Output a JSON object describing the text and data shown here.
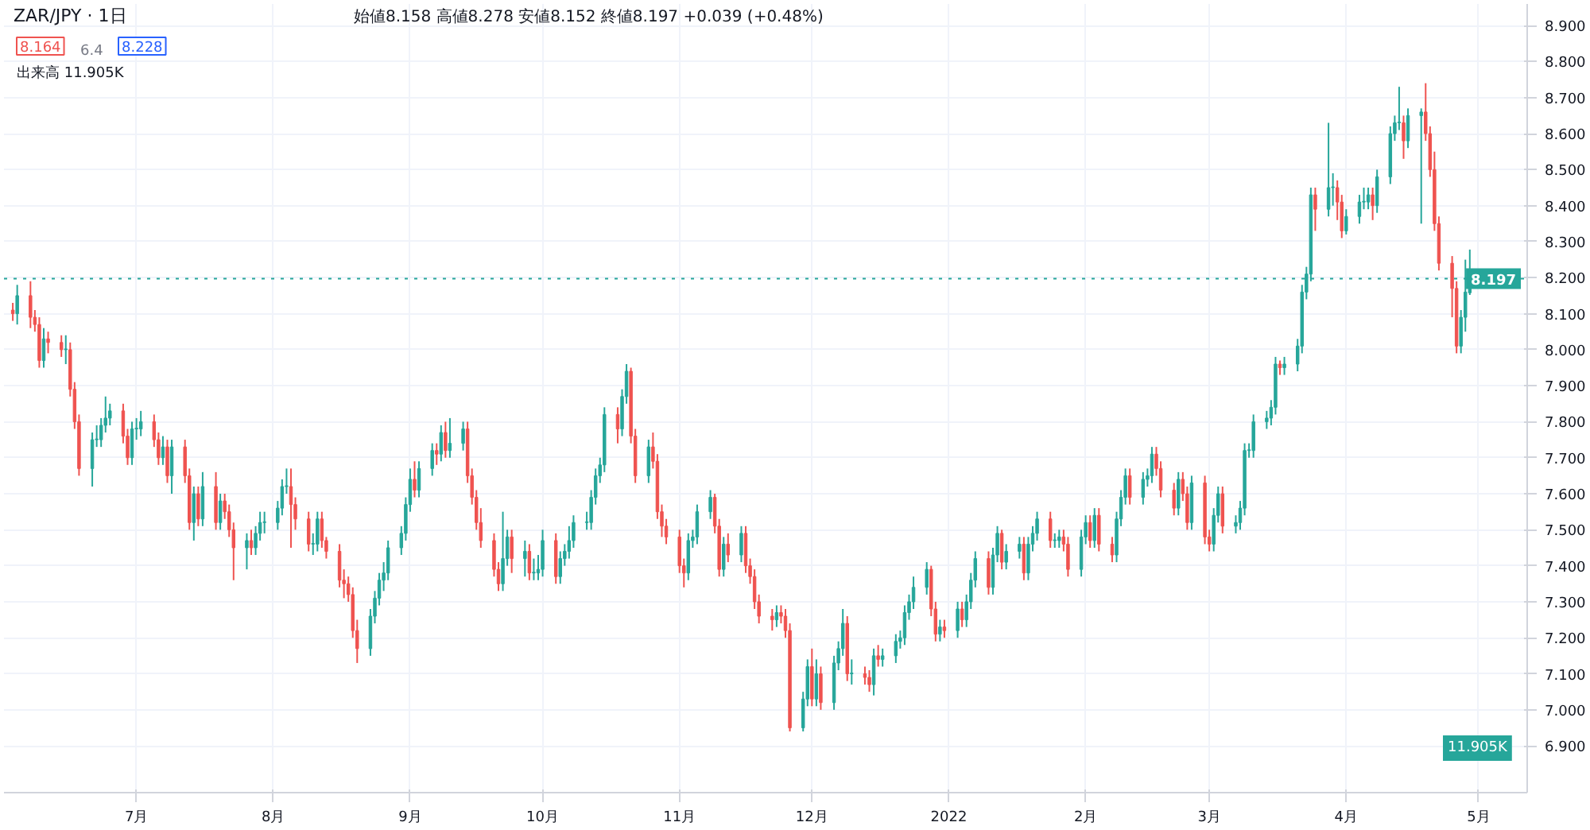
{
  "chart_data": {
    "type": "candlestick",
    "title": "ZAR/JPY · 1日",
    "subtitle": "始値8.158 高値8.278 安値8.152 終値8.197 +0.039 (+0.48%)",
    "annotations": [
      "8.164",
      "6.4",
      "8.228",
      "出来高 11.905K",
      "11.905K"
    ],
    "x": [
      "2021-06-03",
      "2021-06-04",
      "2021-06-07",
      "2021-06-08",
      "2021-06-09",
      "2021-06-10",
      "2021-06-11",
      "2021-06-14",
      "2021-06-15",
      "2021-06-16",
      "2021-06-17",
      "2021-06-18",
      "2021-06-21",
      "2021-06-22",
      "2021-06-23",
      "2021-06-24",
      "2021-06-25",
      "2021-06-28",
      "2021-06-29",
      "2021-06-30",
      "2021-07-01",
      "2021-07-02",
      "2021-07-05",
      "2021-07-06",
      "2021-07-07",
      "2021-07-08",
      "2021-07-09",
      "2021-07-12",
      "2021-07-13",
      "2021-07-14",
      "2021-07-15",
      "2021-07-16",
      "2021-07-19",
      "2021-07-20",
      "2021-07-21",
      "2021-07-22",
      "2021-07-23",
      "2021-07-26",
      "2021-07-27",
      "2021-07-28",
      "2021-07-29",
      "2021-07-30",
      "2021-08-02",
      "2021-08-03",
      "2021-08-04",
      "2021-08-05",
      "2021-08-06",
      "2021-08-09",
      "2021-08-10",
      "2021-08-11",
      "2021-08-12",
      "2021-08-13",
      "2021-08-16",
      "2021-08-17",
      "2021-08-18",
      "2021-08-19",
      "2021-08-20",
      "2021-08-23",
      "2021-08-24",
      "2021-08-25",
      "2021-08-26",
      "2021-08-27",
      "2021-08-30",
      "2021-08-31",
      "2021-09-01",
      "2021-09-02",
      "2021-09-03",
      "2021-09-06",
      "2021-09-07",
      "2021-09-08",
      "2021-09-09",
      "2021-09-10",
      "2021-09-13",
      "2021-09-14",
      "2021-09-15",
      "2021-09-16",
      "2021-09-17",
      "2021-09-20",
      "2021-09-21",
      "2021-09-22",
      "2021-09-23",
      "2021-09-24",
      "2021-09-27",
      "2021-09-28",
      "2021-09-29",
      "2021-09-30",
      "2021-10-01",
      "2021-10-04",
      "2021-10-05",
      "2021-10-06",
      "2021-10-07",
      "2021-10-08",
      "2021-10-11",
      "2021-10-12",
      "2021-10-13",
      "2021-10-14",
      "2021-10-15",
      "2021-10-18",
      "2021-10-19",
      "2021-10-20",
      "2021-10-21",
      "2021-10-22",
      "2021-10-25",
      "2021-10-26",
      "2021-10-27",
      "2021-10-28",
      "2021-10-29",
      "2021-11-01",
      "2021-11-02",
      "2021-11-03",
      "2021-11-04",
      "2021-11-05",
      "2021-11-08",
      "2021-11-09",
      "2021-11-10",
      "2021-11-11",
      "2021-11-12",
      "2021-11-15",
      "2021-11-16",
      "2021-11-17",
      "2021-11-18",
      "2021-11-19",
      "2021-11-22",
      "2021-11-23",
      "2021-11-24",
      "2021-11-25",
      "2021-11-26",
      "2021-11-29",
      "2021-11-30",
      "2021-12-01",
      "2021-12-02",
      "2021-12-03",
      "2021-12-06",
      "2021-12-07",
      "2021-12-08",
      "2021-12-09",
      "2021-12-10",
      "2021-12-13",
      "2021-12-14",
      "2021-12-15",
      "2021-12-16",
      "2021-12-17",
      "2021-12-20",
      "2021-12-21",
      "2021-12-22",
      "2021-12-23",
      "2021-12-24",
      "2021-12-27",
      "2021-12-28",
      "2021-12-29",
      "2021-12-30",
      "2021-12-31",
      "2022-01-03",
      "2022-01-04",
      "2022-01-05",
      "2022-01-06",
      "2022-01-07",
      "2022-01-10",
      "2022-01-11",
      "2022-01-12",
      "2022-01-13",
      "2022-01-14",
      "2022-01-17",
      "2022-01-18",
      "2022-01-19",
      "2022-01-20",
      "2022-01-21",
      "2022-01-24",
      "2022-01-25",
      "2022-01-26",
      "2022-01-27",
      "2022-01-28",
      "2022-01-31",
      "2022-02-01",
      "2022-02-02",
      "2022-02-03",
      "2022-02-04",
      "2022-02-07",
      "2022-02-08",
      "2022-02-09",
      "2022-02-10",
      "2022-02-11",
      "2022-02-14",
      "2022-02-15",
      "2022-02-16",
      "2022-02-17",
      "2022-02-18",
      "2022-02-21",
      "2022-02-22",
      "2022-02-23",
      "2022-02-24",
      "2022-02-25",
      "2022-02-28",
      "2022-03-01",
      "2022-03-02",
      "2022-03-03",
      "2022-03-04",
      "2022-03-07",
      "2022-03-08",
      "2022-03-09",
      "2022-03-10",
      "2022-03-11",
      "2022-03-14",
      "2022-03-15",
      "2022-03-16",
      "2022-03-17",
      "2022-03-18",
      "2022-03-21",
      "2022-03-22",
      "2022-03-23",
      "2022-03-24",
      "2022-03-25",
      "2022-03-28",
      "2022-03-29",
      "2022-03-30",
      "2022-03-31",
      "2022-04-01",
      "2022-04-04",
      "2022-04-05",
      "2022-04-06",
      "2022-04-07",
      "2022-04-08",
      "2022-04-11",
      "2022-04-12",
      "2022-04-13",
      "2022-04-14",
      "2022-04-15",
      "2022-04-18",
      "2022-04-19",
      "2022-04-20",
      "2022-04-21",
      "2022-04-22",
      "2022-04-25",
      "2022-04-26",
      "2022-04-27",
      "2022-04-28",
      "2022-04-29"
    ],
    "ohlc": [
      [
        8.11,
        8.13,
        8.08,
        8.1
      ],
      [
        8.1,
        8.18,
        8.07,
        8.15
      ],
      [
        8.15,
        8.19,
        8.06,
        8.09
      ],
      [
        8.09,
        8.11,
        8.05,
        8.07
      ],
      [
        8.07,
        8.09,
        7.95,
        7.97
      ],
      [
        7.97,
        8.06,
        7.95,
        8.03
      ],
      [
        8.03,
        8.05,
        7.99,
        8.02
      ],
      [
        8.02,
        8.04,
        7.98,
        8.0
      ],
      [
        8.0,
        8.04,
        7.96,
        8.0
      ],
      [
        8.0,
        8.02,
        7.87,
        7.89
      ],
      [
        7.89,
        7.91,
        7.78,
        7.8
      ],
      [
        7.8,
        7.82,
        7.65,
        7.67
      ],
      [
        7.67,
        7.77,
        7.62,
        7.75
      ],
      [
        7.75,
        7.79,
        7.73,
        7.75
      ],
      [
        7.75,
        7.81,
        7.73,
        7.79
      ],
      [
        7.79,
        7.87,
        7.77,
        7.81
      ],
      [
        7.81,
        7.85,
        7.79,
        7.83
      ],
      [
        7.83,
        7.85,
        7.74,
        7.76
      ],
      [
        7.76,
        7.78,
        7.68,
        7.7
      ],
      [
        7.7,
        7.8,
        7.68,
        7.78
      ],
      [
        7.78,
        7.81,
        7.75,
        7.78
      ],
      [
        7.78,
        7.83,
        7.76,
        7.8
      ],
      [
        7.8,
        7.82,
        7.73,
        7.75
      ],
      [
        7.75,
        7.77,
        7.68,
        7.7
      ],
      [
        7.7,
        7.76,
        7.68,
        7.73
      ],
      [
        7.73,
        7.75,
        7.63,
        7.65
      ],
      [
        7.65,
        7.75,
        7.6,
        7.73
      ],
      [
        7.73,
        7.75,
        7.63,
        7.65
      ],
      [
        7.65,
        7.67,
        7.5,
        7.52
      ],
      [
        7.52,
        7.62,
        7.47,
        7.6
      ],
      [
        7.6,
        7.62,
        7.51,
        7.53
      ],
      [
        7.53,
        7.66,
        7.51,
        7.62
      ],
      [
        7.62,
        7.66,
        7.5,
        7.52
      ],
      [
        7.52,
        7.6,
        7.5,
        7.58
      ],
      [
        7.58,
        7.6,
        7.53,
        7.55
      ],
      [
        7.55,
        7.57,
        7.48,
        7.5
      ],
      [
        7.5,
        7.52,
        7.36,
        7.45
      ],
      [
        7.45,
        7.49,
        7.39,
        7.47
      ],
      [
        7.47,
        7.5,
        7.43,
        7.45
      ],
      [
        7.45,
        7.51,
        7.43,
        7.49
      ],
      [
        7.49,
        7.55,
        7.47,
        7.52
      ],
      [
        7.52,
        7.55,
        7.49,
        7.52
      ],
      [
        7.52,
        7.58,
        7.5,
        7.56
      ],
      [
        7.56,
        7.64,
        7.54,
        7.62
      ],
      [
        7.62,
        7.67,
        7.6,
        7.62
      ],
      [
        7.62,
        7.67,
        7.45,
        7.57
      ],
      [
        7.57,
        7.59,
        7.5,
        7.53
      ],
      [
        7.53,
        7.55,
        7.44,
        7.46
      ],
      [
        7.46,
        7.49,
        7.43,
        7.46
      ],
      [
        7.46,
        7.55,
        7.44,
        7.53
      ],
      [
        7.53,
        7.55,
        7.45,
        7.47
      ],
      [
        7.47,
        7.48,
        7.42,
        7.44
      ],
      [
        7.44,
        7.46,
        7.34,
        7.36
      ],
      [
        7.36,
        7.39,
        7.31,
        7.35
      ],
      [
        7.35,
        7.37,
        7.3,
        7.32
      ],
      [
        7.32,
        7.34,
        7.2,
        7.22
      ],
      [
        7.22,
        7.25,
        7.13,
        7.17
      ],
      [
        7.17,
        7.28,
        7.15,
        7.26
      ],
      [
        7.26,
        7.33,
        7.24,
        7.31
      ],
      [
        7.31,
        7.38,
        7.29,
        7.36
      ],
      [
        7.36,
        7.41,
        7.33,
        7.38
      ],
      [
        7.38,
        7.47,
        7.36,
        7.45
      ],
      [
        7.45,
        7.51,
        7.43,
        7.49
      ],
      [
        7.49,
        7.59,
        7.47,
        7.57
      ],
      [
        7.57,
        7.67,
        7.55,
        7.64
      ],
      [
        7.64,
        7.69,
        7.59,
        7.61
      ],
      [
        7.61,
        7.69,
        7.59,
        7.67
      ],
      [
        7.67,
        7.74,
        7.65,
        7.72
      ],
      [
        7.72,
        7.74,
        7.68,
        7.71
      ],
      [
        7.71,
        7.79,
        7.69,
        7.77
      ],
      [
        7.77,
        7.8,
        7.7,
        7.72
      ],
      [
        7.72,
        7.81,
        7.7,
        7.74
      ],
      [
        7.74,
        7.8,
        7.72,
        7.78
      ],
      [
        7.78,
        7.8,
        7.63,
        7.65
      ],
      [
        7.65,
        7.67,
        7.57,
        7.59
      ],
      [
        7.59,
        7.61,
        7.5,
        7.52
      ],
      [
        7.52,
        7.56,
        7.45,
        7.47
      ],
      [
        7.47,
        7.49,
        7.37,
        7.39
      ],
      [
        7.39,
        7.41,
        7.33,
        7.35
      ],
      [
        7.35,
        7.55,
        7.33,
        7.42
      ],
      [
        7.42,
        7.5,
        7.4,
        7.48
      ],
      [
        7.48,
        7.5,
        7.38,
        7.42
      ],
      [
        7.42,
        7.47,
        7.37,
        7.44
      ],
      [
        7.44,
        7.46,
        7.36,
        7.38
      ],
      [
        7.38,
        7.42,
        7.36,
        7.38
      ],
      [
        7.38,
        7.43,
        7.36,
        7.39
      ],
      [
        7.39,
        7.5,
        7.37,
        7.47
      ],
      [
        7.47,
        7.49,
        7.35,
        7.37
      ],
      [
        7.37,
        7.44,
        7.35,
        7.42
      ],
      [
        7.42,
        7.46,
        7.4,
        7.44
      ],
      [
        7.44,
        7.51,
        7.42,
        7.47
      ],
      [
        7.47,
        7.54,
        7.45,
        7.52
      ],
      [
        7.52,
        7.55,
        7.5,
        7.52
      ],
      [
        7.52,
        7.61,
        7.5,
        7.59
      ],
      [
        7.59,
        7.67,
        7.57,
        7.65
      ],
      [
        7.65,
        7.7,
        7.63,
        7.68
      ],
      [
        7.68,
        7.84,
        7.66,
        7.82
      ],
      [
        7.82,
        7.84,
        7.74,
        7.78
      ],
      [
        7.78,
        7.89,
        7.76,
        7.87
      ],
      [
        7.87,
        7.96,
        7.85,
        7.94
      ],
      [
        7.94,
        7.95,
        7.74,
        7.76
      ],
      [
        7.76,
        7.78,
        7.63,
        7.65
      ],
      [
        7.65,
        7.75,
        7.63,
        7.73
      ],
      [
        7.73,
        7.77,
        7.67,
        7.69
      ],
      [
        7.69,
        7.71,
        7.53,
        7.55
      ],
      [
        7.55,
        7.57,
        7.48,
        7.51
      ],
      [
        7.51,
        7.53,
        7.46,
        7.48
      ],
      [
        7.48,
        7.5,
        7.38,
        7.4
      ],
      [
        7.4,
        7.42,
        7.34,
        7.38
      ],
      [
        7.38,
        7.49,
        7.36,
        7.47
      ],
      [
        7.47,
        7.5,
        7.45,
        7.48
      ],
      [
        7.48,
        7.57,
        7.46,
        7.55
      ],
      [
        7.55,
        7.61,
        7.53,
        7.59
      ],
      [
        7.59,
        7.6,
        7.49,
        7.51
      ],
      [
        7.51,
        7.53,
        7.37,
        7.39
      ],
      [
        7.39,
        7.48,
        7.37,
        7.46
      ],
      [
        7.46,
        7.49,
        7.41,
        7.43
      ],
      [
        7.43,
        7.51,
        7.41,
        7.49
      ],
      [
        7.49,
        7.51,
        7.38,
        7.4
      ],
      [
        7.4,
        7.42,
        7.35,
        7.37
      ],
      [
        7.37,
        7.39,
        7.28,
        7.3
      ],
      [
        7.3,
        7.32,
        7.24,
        7.26
      ],
      [
        7.26,
        7.28,
        7.22,
        7.25
      ],
      [
        7.25,
        7.29,
        7.23,
        7.27
      ],
      [
        7.27,
        7.29,
        7.24,
        7.26
      ],
      [
        7.26,
        7.28,
        7.2,
        7.22
      ],
      [
        7.22,
        7.24,
        6.94,
        6.95
      ],
      [
        6.95,
        7.05,
        6.94,
        7.03
      ],
      [
        7.03,
        7.14,
        7.01,
        7.12
      ],
      [
        7.12,
        7.17,
        7.01,
        7.03
      ],
      [
        7.03,
        7.14,
        7.01,
        7.1
      ],
      [
        7.1,
        7.12,
        7.0,
        7.02
      ],
      [
        7.02,
        7.15,
        7.0,
        7.13
      ],
      [
        7.13,
        7.19,
        7.11,
        7.17
      ],
      [
        7.17,
        7.28,
        7.15,
        7.24
      ],
      [
        7.24,
        7.26,
        7.08,
        7.1
      ],
      [
        7.1,
        7.14,
        7.07,
        7.1
      ],
      [
        7.1,
        7.12,
        7.07,
        7.09
      ],
      [
        7.09,
        7.11,
        7.05,
        7.07
      ],
      [
        7.07,
        7.17,
        7.04,
        7.15
      ],
      [
        7.15,
        7.18,
        7.12,
        7.14
      ],
      [
        7.14,
        7.17,
        7.12,
        7.15
      ],
      [
        7.15,
        7.21,
        7.13,
        7.19
      ],
      [
        7.19,
        7.22,
        7.17,
        7.2
      ],
      [
        7.2,
        7.29,
        7.18,
        7.27
      ],
      [
        7.27,
        7.32,
        7.25,
        7.3
      ],
      [
        7.3,
        7.37,
        7.28,
        7.34
      ],
      [
        7.34,
        7.41,
        7.32,
        7.39
      ],
      [
        7.39,
        7.4,
        7.26,
        7.28
      ],
      [
        7.28,
        7.3,
        7.19,
        7.21
      ],
      [
        7.21,
        7.25,
        7.19,
        7.23
      ],
      [
        7.23,
        7.25,
        7.2,
        7.22
      ],
      [
        7.22,
        7.3,
        7.2,
        7.28
      ],
      [
        7.28,
        7.3,
        7.23,
        7.25
      ],
      [
        7.25,
        7.32,
        7.23,
        7.3
      ],
      [
        7.3,
        7.38,
        7.28,
        7.36
      ],
      [
        7.36,
        7.44,
        7.34,
        7.42
      ],
      [
        7.42,
        7.44,
        7.32,
        7.34
      ],
      [
        7.34,
        7.45,
        7.32,
        7.43
      ],
      [
        7.43,
        7.51,
        7.41,
        7.49
      ],
      [
        7.49,
        7.5,
        7.39,
        7.41
      ],
      [
        7.41,
        7.46,
        7.39,
        7.44
      ],
      [
        7.44,
        7.48,
        7.42,
        7.46
      ],
      [
        7.46,
        7.48,
        7.36,
        7.38
      ],
      [
        7.38,
        7.48,
        7.36,
        7.46
      ],
      [
        7.46,
        7.51,
        7.44,
        7.49
      ],
      [
        7.49,
        7.55,
        7.47,
        7.53
      ],
      [
        7.53,
        7.55,
        7.45,
        7.47
      ],
      [
        7.47,
        7.49,
        7.45,
        7.47
      ],
      [
        7.47,
        7.5,
        7.45,
        7.48
      ],
      [
        7.48,
        7.5,
        7.44,
        7.46
      ],
      [
        7.46,
        7.48,
        7.37,
        7.39
      ],
      [
        7.39,
        7.5,
        7.37,
        7.48
      ],
      [
        7.48,
        7.54,
        7.46,
        7.52
      ],
      [
        7.52,
        7.54,
        7.45,
        7.47
      ],
      [
        7.47,
        7.56,
        7.45,
        7.54
      ],
      [
        7.54,
        7.56,
        7.44,
        7.46
      ],
      [
        7.46,
        7.48,
        7.41,
        7.43
      ],
      [
        7.43,
        7.55,
        7.41,
        7.53
      ],
      [
        7.53,
        7.61,
        7.51,
        7.59
      ],
      [
        7.59,
        7.67,
        7.57,
        7.65
      ],
      [
        7.65,
        7.67,
        7.57,
        7.59
      ],
      [
        7.59,
        7.66,
        7.57,
        7.64
      ],
      [
        7.64,
        7.67,
        7.62,
        7.65
      ],
      [
        7.65,
        7.73,
        7.63,
        7.71
      ],
      [
        7.71,
        7.73,
        7.65,
        7.67
      ],
      [
        7.67,
        7.69,
        7.59,
        7.61
      ],
      [
        7.61,
        7.63,
        7.54,
        7.56
      ],
      [
        7.56,
        7.66,
        7.54,
        7.64
      ],
      [
        7.64,
        7.66,
        7.58,
        7.6
      ],
      [
        7.6,
        7.62,
        7.5,
        7.52
      ],
      [
        7.52,
        7.65,
        7.5,
        7.63
      ],
      [
        7.63,
        7.65,
        7.46,
        7.48
      ],
      [
        7.48,
        7.5,
        7.44,
        7.46
      ],
      [
        7.46,
        7.56,
        7.44,
        7.54
      ],
      [
        7.54,
        7.62,
        7.52,
        7.6
      ],
      [
        7.6,
        7.62,
        7.49,
        7.51
      ],
      [
        7.51,
        7.54,
        7.49,
        7.52
      ],
      [
        7.52,
        7.58,
        7.5,
        7.56
      ],
      [
        7.56,
        7.74,
        7.54,
        7.72
      ],
      [
        7.72,
        7.74,
        7.7,
        7.72
      ],
      [
        7.72,
        7.82,
        7.7,
        7.8
      ],
      [
        7.8,
        7.83,
        7.78,
        7.81
      ],
      [
        7.81,
        7.86,
        7.79,
        7.84
      ],
      [
        7.84,
        7.98,
        7.82,
        7.96
      ],
      [
        7.96,
        7.97,
        7.93,
        7.95
      ],
      [
        7.95,
        7.98,
        7.93,
        7.96
      ],
      [
        7.96,
        8.03,
        7.94,
        8.01
      ],
      [
        8.01,
        8.18,
        7.99,
        8.16
      ],
      [
        8.16,
        8.23,
        8.14,
        8.21
      ],
      [
        8.21,
        8.45,
        8.19,
        8.43
      ],
      [
        8.43,
        8.45,
        8.33,
        8.39
      ],
      [
        8.39,
        8.63,
        8.37,
        8.45
      ],
      [
        8.45,
        8.49,
        8.4,
        8.45
      ],
      [
        8.45,
        8.47,
        8.36,
        8.41
      ],
      [
        8.41,
        8.43,
        8.31,
        8.33
      ],
      [
        8.33,
        8.39,
        8.32,
        8.37
      ],
      [
        8.37,
        8.43,
        8.35,
        8.41
      ],
      [
        8.41,
        8.45,
        8.39,
        8.41
      ],
      [
        8.41,
        8.45,
        8.39,
        8.43
      ],
      [
        8.43,
        8.45,
        8.36,
        8.4
      ],
      [
        8.4,
        8.5,
        8.38,
        8.48
      ],
      [
        8.48,
        8.62,
        8.46,
        8.6
      ],
      [
        8.6,
        8.65,
        8.58,
        8.63
      ],
      [
        8.63,
        8.73,
        8.61,
        8.63
      ],
      [
        8.63,
        8.65,
        8.53,
        8.58
      ],
      [
        8.58,
        8.67,
        8.56,
        8.65
      ],
      [
        8.65,
        8.67,
        8.35,
        8.66
      ],
      [
        8.66,
        8.74,
        8.58,
        8.6
      ],
      [
        8.6,
        8.62,
        8.48,
        8.5
      ],
      [
        8.5,
        8.55,
        8.33,
        8.35
      ],
      [
        8.35,
        8.37,
        8.22,
        8.24
      ],
      [
        8.24,
        8.26,
        8.09,
        8.17
      ],
      [
        8.17,
        8.19,
        7.99,
        8.01
      ],
      [
        8.01,
        8.11,
        7.99,
        8.09
      ],
      [
        8.09,
        8.25,
        8.05,
        8.16
      ],
      [
        8.158,
        8.278,
        8.152,
        8.197
      ]
    ],
    "xlim": [
      "2021-06-01",
      "2022-05-12"
    ],
    "xticks": [
      {
        "value": "2021-07",
        "label": "7月"
      },
      {
        "value": "2021-08",
        "label": "8月"
      },
      {
        "value": "2021-09",
        "label": "9月"
      },
      {
        "value": "2021-10",
        "label": "10月"
      },
      {
        "value": "2021-11",
        "label": "11月"
      },
      {
        "value": "2021-12",
        "label": "12月"
      },
      {
        "value": "2022-01",
        "label": "2022"
      },
      {
        "value": "2022-02",
        "label": "2月"
      },
      {
        "value": "2022-03",
        "label": "3月"
      },
      {
        "value": "2022-04",
        "label": "4月"
      },
      {
        "value": "2022-05",
        "label": "5月"
      }
    ],
    "ylim": [
      6.77,
      8.96
    ],
    "yticks": [
      {
        "value": 6.9,
        "label": "6.900"
      },
      {
        "value": 7.0,
        "label": "7.000"
      },
      {
        "value": 7.1,
        "label": "7.100"
      },
      {
        "value": 7.2,
        "label": "7.200"
      },
      {
        "value": 7.3,
        "label": "7.300"
      },
      {
        "value": 7.4,
        "label": "7.400"
      },
      {
        "value": 7.5,
        "label": "7.500"
      },
      {
        "value": 7.6,
        "label": "7.600"
      },
      {
        "value": 7.7,
        "label": "7.700"
      },
      {
        "value": 7.8,
        "label": "7.800"
      },
      {
        "value": 7.9,
        "label": "7.900"
      },
      {
        "value": 8.0,
        "label": "8.000"
      },
      {
        "value": 8.1,
        "label": "8.100"
      },
      {
        "value": 8.2,
        "label": "8.200"
      },
      {
        "value": 8.3,
        "label": "8.300"
      },
      {
        "value": 8.4,
        "label": "8.400"
      },
      {
        "value": 8.5,
        "label": "8.500"
      },
      {
        "value": 8.6,
        "label": "8.600"
      },
      {
        "value": 8.7,
        "label": "8.700"
      },
      {
        "value": 8.8,
        "label": "8.800"
      },
      {
        "value": 8.9,
        "label": "8.900"
      }
    ],
    "ref_lines": [
      {
        "axis": "y",
        "value": 8.197,
        "label": "8.197",
        "color": "#26a69a",
        "line_style": "dotted"
      }
    ],
    "grid": true
  }
}
